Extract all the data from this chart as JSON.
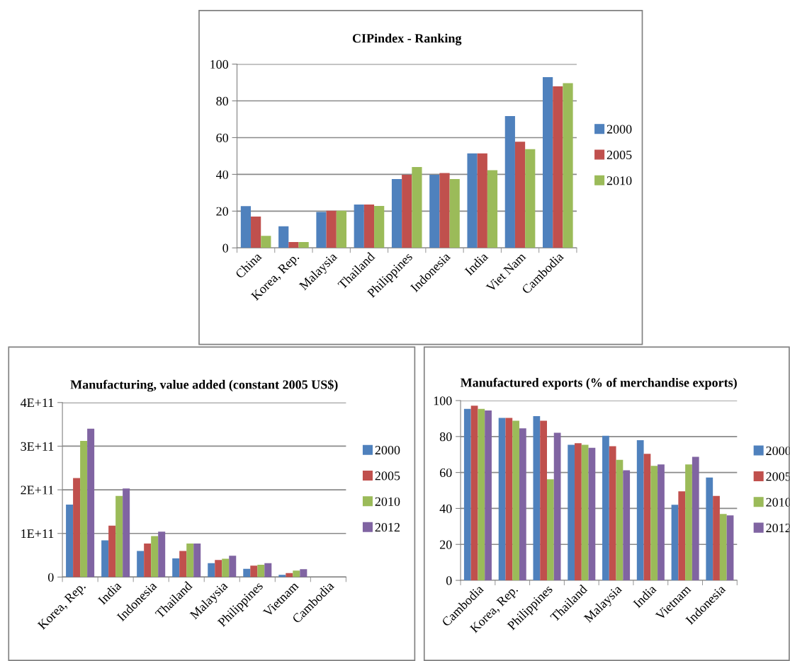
{
  "chart_data": [
    {
      "type": "bar",
      "title": "CIPindex - Ranking",
      "categories": [
        "China",
        "Korea, Rep.",
        "Malaysia",
        "Thailand",
        "Philippines",
        "Indonesia",
        "India",
        "Viet Nam",
        "Cambodia"
      ],
      "series": [
        {
          "name": "2000",
          "color": "#4f81bd",
          "values": [
            22.7,
            11.7,
            19.5,
            23.6,
            37.5,
            39.8,
            51.4,
            71.7,
            92.9
          ]
        },
        {
          "name": "2005",
          "color": "#c0504d",
          "values": [
            17,
            3.2,
            20.2,
            23.6,
            39.8,
            40.7,
            51.4,
            57.8,
            87.9
          ]
        },
        {
          "name": "2010",
          "color": "#9bbb59",
          "values": [
            6.5,
            3.2,
            20.2,
            22.8,
            44,
            37.5,
            42.3,
            53.7,
            89.6
          ]
        }
      ],
      "ylim": [
        0,
        100
      ],
      "yticks": [
        0,
        20,
        40,
        60,
        80,
        100
      ],
      "grid": "y",
      "legend": "right"
    },
    {
      "type": "bar",
      "title": "Manufacturing, value added (constant 2005 US$)",
      "categories": [
        "Korea, Rep.",
        "India",
        "Indonesia",
        "Thailand",
        "Malaysia",
        "Philippines",
        "Vietnam",
        "Cambodia"
      ],
      "series": [
        {
          "name": "2000",
          "color": "#4f81bd",
          "values": [
            166000000000,
            84000000000,
            60000000000,
            43000000000,
            32000000000,
            19000000000,
            5000000000,
            0
          ]
        },
        {
          "name": "2005",
          "color": "#c0504d",
          "values": [
            227000000000,
            118000000000,
            77000000000,
            60000000000,
            39000000000,
            26000000000,
            9000000000,
            0
          ]
        },
        {
          "name": "2010",
          "color": "#9bbb59",
          "values": [
            312000000000,
            186000000000,
            94000000000,
            77000000000,
            42000000000,
            28000000000,
            15000000000,
            0
          ]
        },
        {
          "name": "2012",
          "color": "#8064a2",
          "values": [
            340000000000,
            203000000000,
            104000000000,
            77000000000,
            49000000000,
            32000000000,
            18000000000,
            0
          ]
        }
      ],
      "ylim": [
        0,
        400000000000
      ],
      "yticks": [
        0,
        {
          "value": 100000000000,
          "label": "1E+11"
        },
        {
          "value": 200000000000,
          "label": "2E+11"
        },
        {
          "value": 300000000000,
          "label": "3E+11"
        },
        {
          "value": 400000000000,
          "label": "4E+11"
        }
      ],
      "grid": "y",
      "legend": "right"
    },
    {
      "type": "bar",
      "title": "Manufactured exports (% of merchandise exports)",
      "categories": [
        "Cambodia",
        "Korea, Rep.",
        "Philippines",
        "Thailand",
        "Malaysia",
        "India",
        "Vietnam",
        "Indonesia"
      ],
      "series": [
        {
          "name": "2000",
          "color": "#4f81bd",
          "values": [
            95.4,
            90.4,
            91.3,
            75.4,
            80.4,
            78,
            42,
            57.2
          ]
        },
        {
          "name": "2005",
          "color": "#c0504d",
          "values": [
            97.1,
            90.4,
            88.8,
            76.3,
            74.6,
            70.4,
            49.5,
            47
          ]
        },
        {
          "name": "2010",
          "color": "#9bbb59",
          "values": [
            95.4,
            88.8,
            56.2,
            75.4,
            67,
            63.7,
            64.5,
            36.9
          ]
        },
        {
          "name": "2012",
          "color": "#8064a2",
          "values": [
            94.5,
            84.6,
            82.1,
            73.7,
            61.2,
            64.5,
            68.7,
            36.1
          ]
        }
      ],
      "ylim": [
        0,
        100
      ],
      "yticks": [
        0,
        20,
        40,
        60,
        80,
        100
      ],
      "grid": "y",
      "legend": "right"
    }
  ]
}
